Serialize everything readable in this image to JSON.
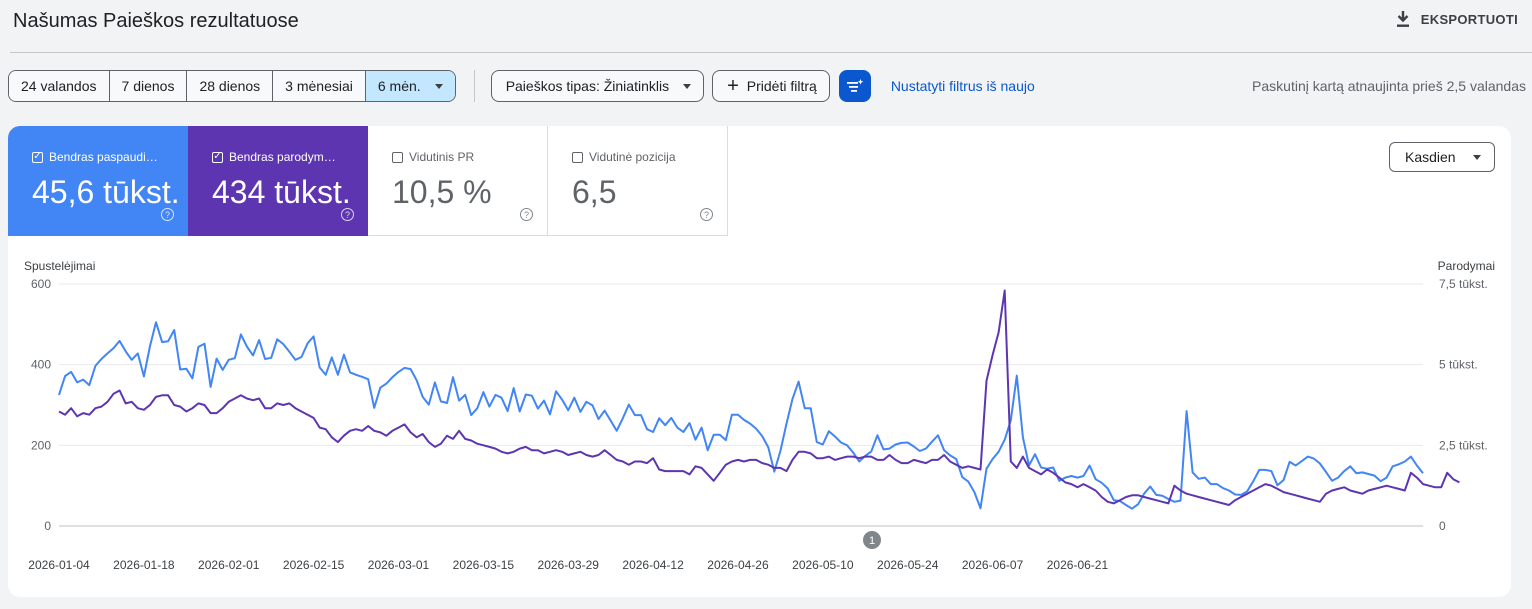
{
  "header": {
    "title": "Našumas Paieškos rezultatuose",
    "export_label": "EKSPORTUOTI"
  },
  "date_range": {
    "options": [
      "24 valandos",
      "7 dienos",
      "28 dienos",
      "3 mėnesiai",
      "6 mėn."
    ],
    "selected": "6 mėn."
  },
  "filters": {
    "search_type": "Paieškos tipas: Žiniatinklis",
    "add_filter": "Pridėti filtrą",
    "reset": "Nustatyti filtrus iš naujo"
  },
  "updated_text": "Paskutinį kartą atnaujinta prieš 2,5 valandas",
  "metrics": [
    {
      "label": "Bendras paspaudi…",
      "value": "45,6 tūkst.",
      "checked": true,
      "color": "#4285f4"
    },
    {
      "label": "Bendras parodym…",
      "value": "434 tūkst.",
      "checked": true,
      "color": "#5e35b1"
    },
    {
      "label": "Vidutinis PR",
      "value": "10,5 %",
      "checked": false
    },
    {
      "label": "Vidutinė pozicija",
      "value": "6,5",
      "checked": false
    }
  ],
  "granularity": "Kasdien",
  "annotation_badge": "1",
  "chart_data": {
    "type": "line",
    "left_axis_label": "Spustelėjimai",
    "right_axis_label": "Parodymai",
    "left_ticks": [
      "600",
      "400",
      "200",
      "0"
    ],
    "right_ticks": [
      "7,5 tūkst.",
      "5 tūkst.",
      "2,5 tūkst.",
      "0"
    ],
    "ylim_left": [
      0,
      600
    ],
    "ylim_right": [
      0,
      7500
    ],
    "x_tick_labels": [
      "2026-01-04",
      "2026-01-18",
      "2026-02-01",
      "2026-02-15",
      "2026-03-01",
      "2026-03-15",
      "2026-03-29",
      "2026-04-12",
      "2026-04-26",
      "2026-05-10",
      "2026-05-24",
      "2026-06-07",
      "2026-06-21"
    ],
    "start_date": "2026-01-04",
    "grid": true,
    "series": [
      {
        "name": "Bendras paspaudimų skaičius",
        "axis": "left",
        "color": "#4285f4",
        "values": [
          325,
          372,
          382,
          356,
          363,
          349,
          397,
          414,
          428,
          441,
          459,
          433,
          412,
          428,
          371,
          445,
          505,
          456,
          458,
          486,
          388,
          390,
          366,
          444,
          452,
          345,
          415,
          387,
          412,
          416,
          475,
          445,
          423,
          461,
          414,
          417,
          463,
          451,
          432,
          412,
          419,
          453,
          470,
          393,
          375,
          418,
          375,
          425,
          381,
          375,
          370,
          364,
          293,
          343,
          353,
          369,
          382,
          392,
          389,
          361,
          320,
          301,
          356,
          309,
          305,
          369,
          311,
          325,
          275,
          292,
          332,
          296,
          325,
          318,
          285,
          342,
          284,
          326,
          323,
          291,
          311,
          277,
          334,
          313,
          287,
          318,
          283,
          308,
          299,
          265,
          286,
          261,
          236,
          267,
          301,
          275,
          275,
          240,
          233,
          267,
          250,
          268,
          244,
          233,
          255,
          214,
          244,
          188,
          226,
          226,
          213,
          276,
          276,
          263,
          254,
          241,
          223,
          195,
          135,
          186,
          254,
          315,
          358,
          292,
          292,
          208,
          202,
          235,
          222,
          207,
          200,
          182,
          160,
          174,
          185,
          225,
          190,
          192,
          202,
          206,
          207,
          197,
          186,
          192,
          209,
          225,
          188,
          175,
          166,
          121,
          110,
          84,
          44,
          142,
          166,
          184,
          214,
          262,
          373,
          220,
          150,
          178,
          145,
          142,
          145,
          112,
          120,
          124,
          120,
          124,
          150,
          116,
          107,
          93,
          64,
          62,
          52,
          43,
          54,
          80,
          98,
          77,
          75,
          67,
          60,
          63,
          285,
          133,
          117,
          120,
          104,
          104,
          94,
          88,
          78,
          77,
          86,
          111,
          139,
          139,
          136,
          101,
          114,
          159,
          150,
          161,
          172,
          167,
          155,
          134,
          112,
          120,
          136,
          148,
          131,
          133,
          129,
          125,
          111,
          120,
          148,
          153,
          160,
          172,
          150,
          131
        ]
      },
      {
        "name": "Bendras parodymų skaičius",
        "axis": "right",
        "color": "#5e35b1",
        "values": [
          3550,
          3450,
          3650,
          3400,
          3500,
          3450,
          3650,
          3700,
          3850,
          4100,
          4200,
          3800,
          3850,
          3650,
          3600,
          3750,
          4000,
          4050,
          4050,
          3750,
          3700,
          3550,
          3650,
          3800,
          3750,
          3500,
          3500,
          3650,
          3850,
          3950,
          4050,
          3950,
          3900,
          3950,
          3650,
          3650,
          3800,
          3750,
          3800,
          3650,
          3550,
          3450,
          3350,
          3050,
          3000,
          2750,
          2600,
          2800,
          2950,
          3000,
          2950,
          3100,
          2950,
          2900,
          2800,
          2950,
          3050,
          3150,
          2900,
          2750,
          2850,
          2600,
          2450,
          2550,
          2800,
          2700,
          2950,
          2700,
          2650,
          2550,
          2500,
          2450,
          2400,
          2300,
          2250,
          2300,
          2400,
          2450,
          2350,
          2350,
          2250,
          2300,
          2350,
          2300,
          2200,
          2250,
          2300,
          2200,
          2150,
          2200,
          2350,
          2200,
          2050,
          2000,
          1900,
          2000,
          2000,
          1950,
          2100,
          1750,
          1700,
          1700,
          1700,
          1700,
          1600,
          1850,
          1800,
          1600,
          1400,
          1650,
          1900,
          2000,
          2050,
          2000,
          2050,
          2050,
          1950,
          1900,
          1800,
          1800,
          1700,
          2050,
          2300,
          2300,
          2250,
          2100,
          2100,
          2150,
          2050,
          2100,
          2150,
          2150,
          2100,
          2150,
          2150,
          2050,
          2050,
          2200,
          2050,
          1950,
          1950,
          2050,
          2000,
          1950,
          2050,
          2050,
          2200,
          2000,
          1900,
          1800,
          1850,
          1800,
          1750,
          4500,
          5300,
          6000,
          7300,
          2000,
          1800,
          2150,
          1800,
          1700,
          1600,
          1750,
          1650,
          1500,
          1350,
          1300,
          1200,
          1300,
          1200,
          1100,
          900,
          750,
          700,
          800,
          900,
          950,
          950,
          900,
          850,
          800,
          750,
          700,
          1250,
          1100,
          1000,
          950,
          900,
          850,
          800,
          750,
          700,
          650,
          800,
          900,
          1000,
          1100,
          1200,
          1300,
          1250,
          1150,
          1050,
          1000,
          950,
          900,
          850,
          800,
          750,
          1000,
          1100,
          1150,
          1200,
          1100,
          1050,
          1000,
          1100,
          1150,
          1200,
          1250,
          1200,
          1150,
          1100,
          1650,
          1500,
          1300,
          1250,
          1200,
          1200,
          1650,
          1450,
          1350
        ]
      }
    ]
  }
}
